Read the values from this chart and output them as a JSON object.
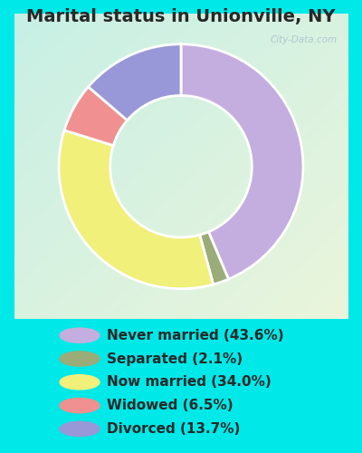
{
  "title": "Marital status in Unionville, NY",
  "segments": [
    {
      "label": "Never married (43.6%)",
      "value": 43.6,
      "color": "#c4aee0"
    },
    {
      "label": "Separated (2.1%)",
      "value": 2.1,
      "color": "#9aac78"
    },
    {
      "label": "Now married (34.0%)",
      "value": 34.0,
      "color": "#f0f07a"
    },
    {
      "label": "Widowed (6.5%)",
      "value": 6.5,
      "color": "#f09090"
    },
    {
      "label": "Divorced (13.7%)",
      "value": 13.7,
      "color": "#9898d8"
    }
  ],
  "bg_color_outer": "#00e8e8",
  "chart_bg_tl": [
    0.78,
    0.94,
    0.9
  ],
  "chart_bg_br": [
    0.92,
    0.96,
    0.86
  ],
  "title_color": "#282828",
  "watermark": "City-Data.com",
  "legend_text_color": "#282828",
  "donut_width": 0.42,
  "start_angle": 90,
  "title_fontsize": 14,
  "legend_fontsize": 11
}
